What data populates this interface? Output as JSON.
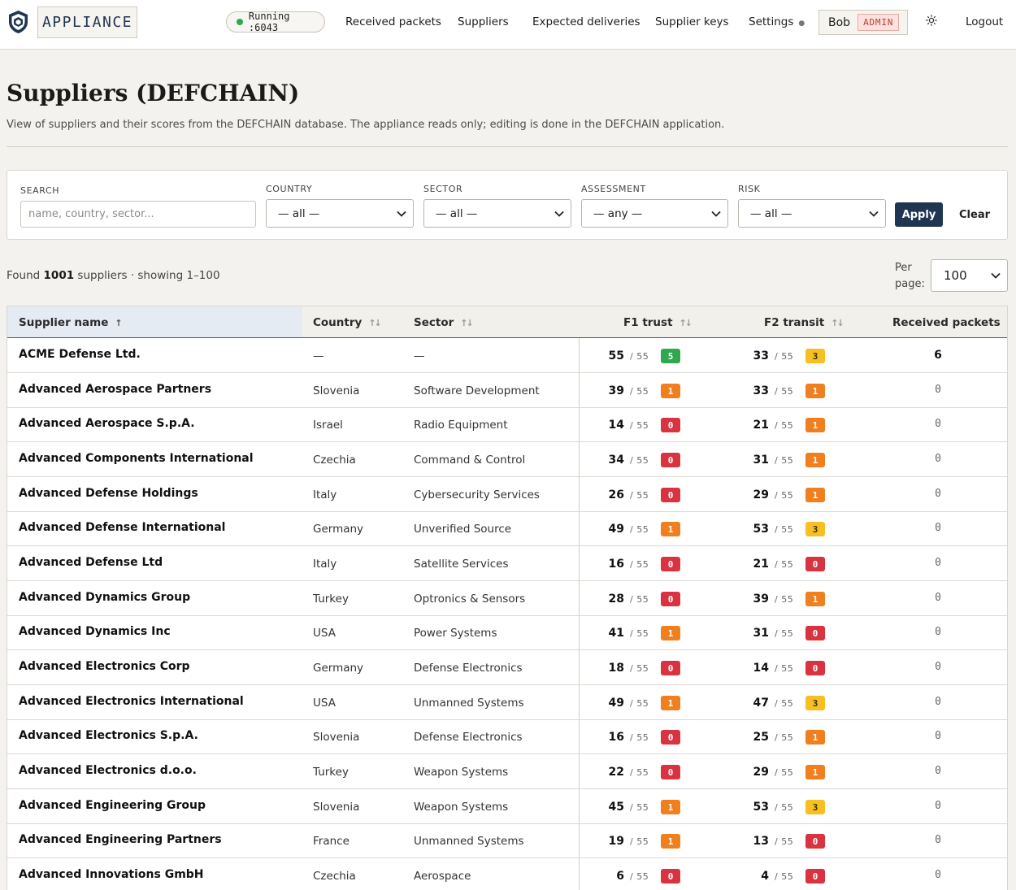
{
  "topbar": {
    "brand": "APPLIANCE",
    "status": "Running :6043",
    "nav": {
      "received_packets": "Received packets",
      "suppliers": "Suppliers",
      "expected_deliveries": "Expected deliveries",
      "supplier_keys": "Supplier keys",
      "settings": "Settings"
    },
    "user": "Bob",
    "role": "ADMIN",
    "logout": "Logout"
  },
  "header": {
    "title": "Suppliers (DEFCHAIN)",
    "subtitle": "View of suppliers and their scores from the DEFCHAIN database. The appliance reads only; editing is done in the DEFCHAIN application."
  },
  "filters": {
    "search_label": "SEARCH",
    "search_placeholder": "name, country, sector...",
    "country_label": "COUNTRY",
    "country_value": "— all —",
    "sector_label": "SECTOR",
    "sector_value": "— all —",
    "assessment_label": "ASSESSMENT",
    "assessment_value": "— any —",
    "risk_label": "RISK",
    "risk_value": "— all —",
    "apply": "Apply",
    "clear": "Clear"
  },
  "summary": {
    "prefix": "Found",
    "count": "1001",
    "suffix": "suppliers · showing 1–100",
    "per_page_label": "Per page:",
    "per_page_value": "100"
  },
  "table": {
    "headers": {
      "name": "Supplier name",
      "country": "Country",
      "sector": "Sector",
      "f1": "F1 trust",
      "f2": "F2 transit",
      "received": "Received packets"
    },
    "score_max": "/ 55",
    "rows": [
      {
        "name": "ACME Defense Ltd.",
        "country": "—",
        "sector": "—",
        "f1": "55",
        "f1_level": "5",
        "f2": "33",
        "f2_level": "3",
        "received": "6"
      },
      {
        "name": "Advanced Aerospace Partners",
        "country": "Slovenia",
        "sector": "Software Development",
        "f1": "39",
        "f1_level": "1",
        "f2": "33",
        "f2_level": "1",
        "received": "0"
      },
      {
        "name": "Advanced Aerospace S.p.A.",
        "country": "Israel",
        "sector": "Radio Equipment",
        "f1": "14",
        "f1_level": "0",
        "f2": "21",
        "f2_level": "1",
        "received": "0"
      },
      {
        "name": "Advanced Components International",
        "country": "Czechia",
        "sector": "Command & Control",
        "f1": "34",
        "f1_level": "0",
        "f2": "31",
        "f2_level": "1",
        "received": "0"
      },
      {
        "name": "Advanced Defense Holdings",
        "country": "Italy",
        "sector": "Cybersecurity Services",
        "f1": "26",
        "f1_level": "0",
        "f2": "29",
        "f2_level": "1",
        "received": "0"
      },
      {
        "name": "Advanced Defense International",
        "country": "Germany",
        "sector": "Unverified Source",
        "f1": "49",
        "f1_level": "1",
        "f2": "53",
        "f2_level": "3",
        "received": "0"
      },
      {
        "name": "Advanced Defense Ltd",
        "country": "Italy",
        "sector": "Satellite Services",
        "f1": "16",
        "f1_level": "0",
        "f2": "21",
        "f2_level": "0",
        "received": "0"
      },
      {
        "name": "Advanced Dynamics Group",
        "country": "Turkey",
        "sector": "Optronics & Sensors",
        "f1": "28",
        "f1_level": "0",
        "f2": "39",
        "f2_level": "1",
        "received": "0"
      },
      {
        "name": "Advanced Dynamics Inc",
        "country": "USA",
        "sector": "Power Systems",
        "f1": "41",
        "f1_level": "1",
        "f2": "31",
        "f2_level": "0",
        "received": "0"
      },
      {
        "name": "Advanced Electronics Corp",
        "country": "Germany",
        "sector": "Defense Electronics",
        "f1": "18",
        "f1_level": "0",
        "f2": "14",
        "f2_level": "0",
        "received": "0"
      },
      {
        "name": "Advanced Electronics International",
        "country": "USA",
        "sector": "Unmanned Systems",
        "f1": "49",
        "f1_level": "1",
        "f2": "47",
        "f2_level": "3",
        "received": "0"
      },
      {
        "name": "Advanced Electronics S.p.A.",
        "country": "Slovenia",
        "sector": "Defense Electronics",
        "f1": "16",
        "f1_level": "0",
        "f2": "25",
        "f2_level": "1",
        "received": "0"
      },
      {
        "name": "Advanced Electronics d.o.o.",
        "country": "Turkey",
        "sector": "Weapon Systems",
        "f1": "22",
        "f1_level": "0",
        "f2": "29",
        "f2_level": "1",
        "received": "0"
      },
      {
        "name": "Advanced Engineering Group",
        "country": "Slovenia",
        "sector": "Weapon Systems",
        "f1": "45",
        "f1_level": "1",
        "f2": "53",
        "f2_level": "3",
        "received": "0"
      },
      {
        "name": "Advanced Engineering Partners",
        "country": "France",
        "sector": "Unmanned Systems",
        "f1": "19",
        "f1_level": "1",
        "f2": "13",
        "f2_level": "0",
        "received": "0"
      },
      {
        "name": "Advanced Innovations GmbH",
        "country": "Czechia",
        "sector": "Aerospace",
        "f1": "6",
        "f1_level": "0",
        "f2": "4",
        "f2_level": "0",
        "received": "0"
      }
    ]
  },
  "icons": {
    "brand": "shield-logo-icon",
    "status": "status-dot-icon",
    "theme": "sun-icon",
    "sort_active": "sort-ascending-icon",
    "sort_inactive": "sort-both-icon",
    "select": "chevron-down-icon"
  },
  "colors": {
    "brand_navy": "#1f3552",
    "status_green": "#2fa84f",
    "level_0": "#d93240",
    "level_1": "#f07f1f",
    "level_3": "#f6c023",
    "level_5": "#2fa84f",
    "admin_red": "#c0392b"
  }
}
